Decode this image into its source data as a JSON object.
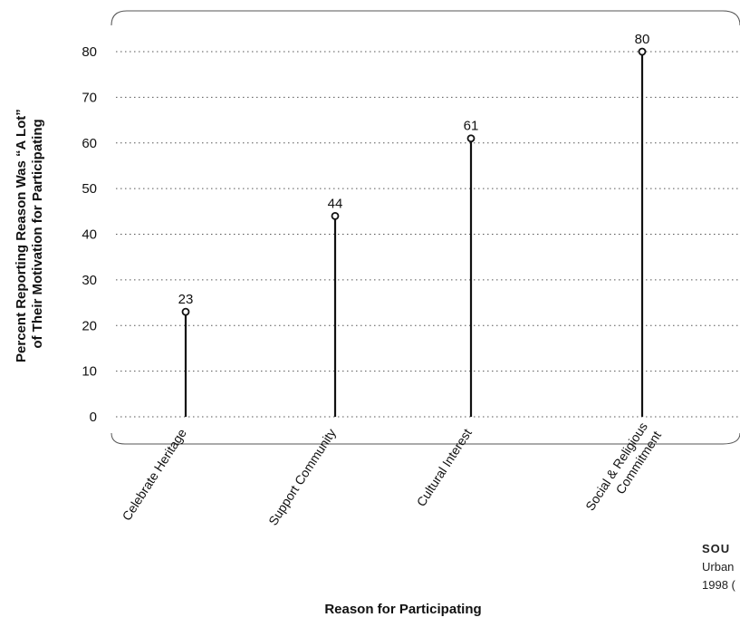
{
  "chart_data": {
    "type": "lollipop",
    "categories": [
      "Celebrate Heritage",
      "Support Community",
      "Cultural Interest",
      "Social & Religious Commitment"
    ],
    "category_lines": [
      [
        "Celebrate Heritage"
      ],
      [
        "Support Community"
      ],
      [
        "Cultural Interest"
      ],
      [
        "Social & Religious",
        "Commitment"
      ]
    ],
    "values": [
      23,
      44,
      61,
      80
    ],
    "data_labels": [
      "23",
      "44",
      "61",
      "80"
    ],
    "xlabel": "Reason for Participating",
    "ylabel_lines": [
      "Percent Reporting Reason Was “A Lot”",
      "of Their Motivation for Participating"
    ],
    "ylim": [
      0,
      80
    ],
    "yticks": [
      0,
      10,
      20,
      30,
      40,
      50,
      60,
      70,
      80
    ],
    "ytick_labels": [
      "0",
      "10",
      "20",
      "30",
      "40",
      "50",
      "60",
      "70",
      "80"
    ],
    "grid": true,
    "grid_style": "dotted",
    "colors": {
      "stem": "#111111",
      "marker_fill": "#ffffff",
      "grid": "#555555",
      "frame": "#555555"
    }
  },
  "source_fragment": {
    "label": "SOU",
    "line_1": "Urban",
    "line_2": "1998 ("
  }
}
